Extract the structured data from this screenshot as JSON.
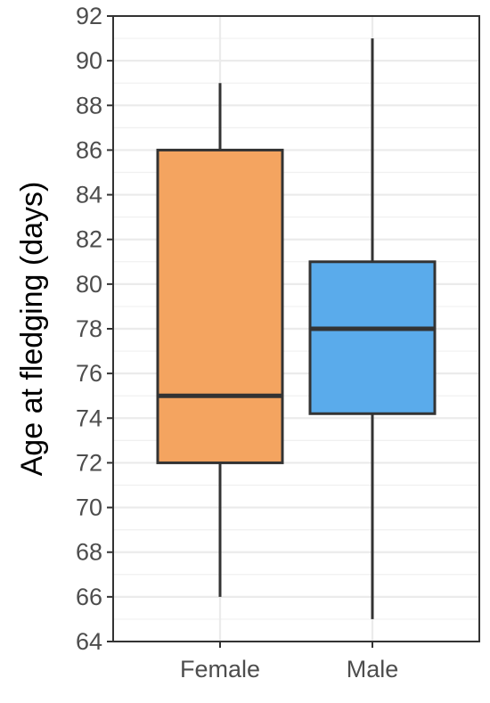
{
  "chart_data": {
    "type": "boxplot",
    "ylabel": "Age at fledging (days)",
    "xlabel": "",
    "ylim": [
      64,
      92
    ],
    "yticks": [
      64,
      66,
      68,
      70,
      72,
      74,
      76,
      78,
      80,
      82,
      84,
      86,
      88,
      90,
      92
    ],
    "grid": true,
    "categories": [
      "Female",
      "Male"
    ],
    "boxes": [
      {
        "category": "Female",
        "min": 66,
        "q1": 72,
        "median": 75,
        "q3": 86,
        "max": 89,
        "color": "#F4A460"
      },
      {
        "category": "Male",
        "min": 65,
        "q1": 74.2,
        "median": 78,
        "q3": 81,
        "max": 91,
        "color": "#5AABEB"
      }
    ]
  }
}
